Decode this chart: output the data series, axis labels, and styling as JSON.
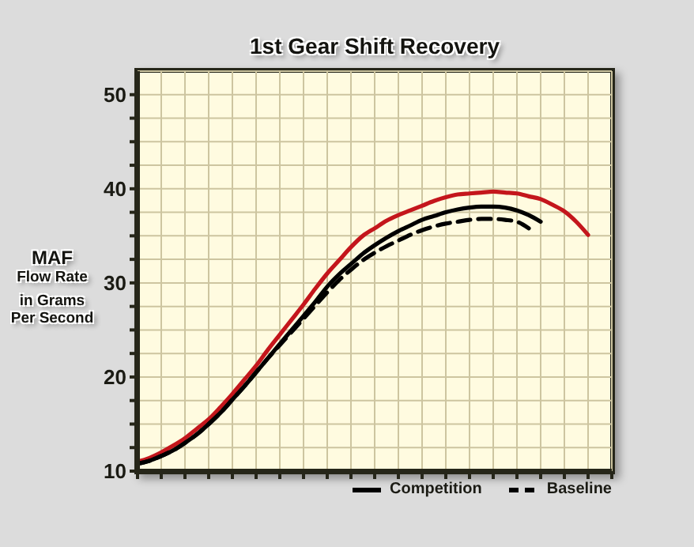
{
  "chart_data": {
    "type": "line",
    "title": "1st Gear Shift Recovery",
    "ylabel": "MAF\nFlow Rate\nin Grams\nPer Second",
    "categories": [
      null,
      null,
      null,
      null,
      null,
      null,
      null,
      null,
      null,
      null,
      null,
      null,
      null,
      null,
      null,
      null,
      null,
      null,
      null,
      null,
      null,
      null,
      null,
      null,
      null,
      null,
      null,
      null,
      null,
      null,
      null,
      null,
      null,
      null,
      null,
      null,
      null,
      null,
      null,
      null,
      null
    ],
    "series": [
      {
        "color": "#c4161c",
        "line_style": "solid",
        "values": [
          11.0,
          11.4,
          12.0,
          12.7,
          13.5,
          14.5,
          15.5,
          16.8,
          18.2,
          19.7,
          21.2,
          22.9,
          24.5,
          26.1,
          27.7,
          29.4,
          31.0,
          32.4,
          33.8,
          35.0,
          35.8,
          36.6,
          37.2,
          37.7,
          38.2,
          38.7,
          39.1,
          39.4,
          39.5,
          39.6,
          39.7,
          39.6,
          39.5,
          39.2,
          38.9,
          38.3,
          37.6,
          36.5,
          35.1,
          null,
          null
        ]
      },
      {
        "name": "Competition",
        "color": "#000000",
        "line_style": "solid",
        "values": [
          10.8,
          11.1,
          11.6,
          12.2,
          13.0,
          13.9,
          15.0,
          16.2,
          17.6,
          19.0,
          20.5,
          22.0,
          23.5,
          25.0,
          26.5,
          28.0,
          29.6,
          30.9,
          32.0,
          33.1,
          34.0,
          34.8,
          35.5,
          36.1,
          36.7,
          37.1,
          37.5,
          37.8,
          38.0,
          38.1,
          38.1,
          38.0,
          37.7,
          37.2,
          36.5,
          null,
          null,
          null,
          null,
          null,
          null
        ]
      },
      {
        "name": "Baseline",
        "color": "#000000",
        "line_style": "dashed",
        "values": [
          10.8,
          11.1,
          11.6,
          12.2,
          13.0,
          13.9,
          15.0,
          16.2,
          17.6,
          19.0,
          20.5,
          22.0,
          23.4,
          24.8,
          26.2,
          27.6,
          29.0,
          30.3,
          31.4,
          32.4,
          33.2,
          33.9,
          34.5,
          35.1,
          35.6,
          36.0,
          36.3,
          36.5,
          36.7,
          36.8,
          36.8,
          36.7,
          36.5,
          35.8,
          null,
          null,
          null,
          null,
          null,
          null,
          null
        ]
      }
    ],
    "ylim": [
      10,
      52.5
    ],
    "yticks": [
      10,
      {
        "value": 12.5,
        "label": null
      },
      {
        "value": 15,
        "label": null
      },
      {
        "value": 17.5,
        "label": null
      },
      20,
      {
        "value": 22.5,
        "label": null
      },
      {
        "value": 25,
        "label": null
      },
      {
        "value": 27.5,
        "label": null
      },
      30,
      {
        "value": 32.5,
        "label": null
      },
      {
        "value": 35,
        "label": null
      },
      {
        "value": 37.5,
        "label": null
      },
      40,
      {
        "value": 42.5,
        "label": null
      },
      {
        "value": 45,
        "label": null
      },
      {
        "value": 47.5,
        "label": null
      },
      50
    ],
    "grid": true,
    "legend": "bottom right",
    "tick_labels": "y",
    "marker": "none"
  }
}
